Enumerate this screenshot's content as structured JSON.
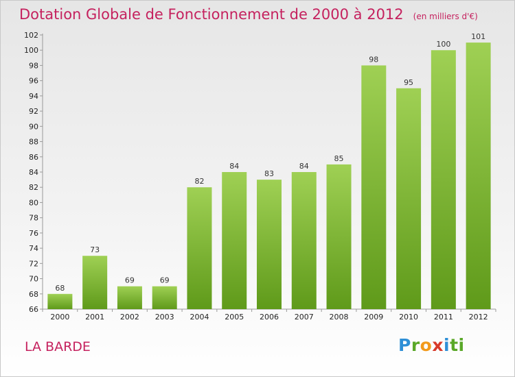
{
  "chart_data": {
    "type": "bar",
    "title": "Dotation Globale de Fonctionnement de 2000 à 2012",
    "subtitle": "(en milliers d'€)",
    "categories": [
      "2000",
      "2001",
      "2002",
      "2003",
      "2004",
      "2005",
      "2006",
      "2007",
      "2008",
      "2009",
      "2010",
      "2011",
      "2012"
    ],
    "values": [
      68,
      73,
      69,
      69,
      82,
      84,
      83,
      84,
      85,
      98,
      95,
      100,
      101
    ],
    "ylim": [
      66,
      102
    ],
    "yticks": [
      66,
      68,
      70,
      72,
      74,
      76,
      78,
      80,
      82,
      84,
      86,
      88,
      90,
      92,
      94,
      96,
      98,
      100,
      102
    ],
    "grid": false,
    "bar_color_top": "#9fd054",
    "bar_color_bottom": "#5f9a1a"
  },
  "location_label": "LA BARDE",
  "brand": {
    "name": "Proxiti",
    "letters": [
      "P",
      "r",
      "o",
      "x",
      "i",
      "ti"
    ]
  }
}
